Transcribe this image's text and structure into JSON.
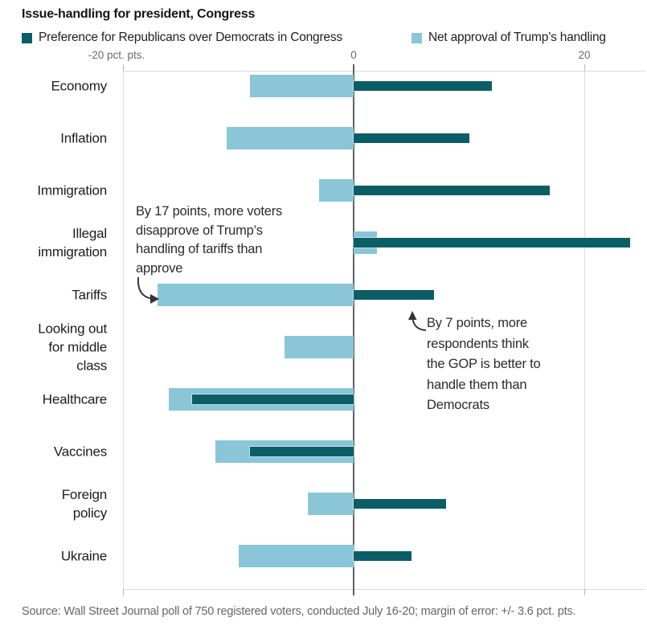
{
  "title": "Issue-handling for president, Congress",
  "legend": [
    {
      "label": "Preference for Republicans over Democrats in Congress",
      "color": "#0b5e66"
    },
    {
      "label": "Net approval of Trump’s handling",
      "color": "#8ac6d8"
    }
  ],
  "axis": {
    "unit_label": "pct. pts.",
    "ticks": [
      {
        "value": -20,
        "label": "-20 pct. pts."
      },
      {
        "value": 0,
        "label": "0"
      },
      {
        "value": 20,
        "label": "20"
      }
    ]
  },
  "chart_data": {
    "type": "bar",
    "orientation": "horizontal",
    "title": "Issue-handling for president, Congress",
    "xlabel": "pct. pts.",
    "xlim": [
      -20,
      25.5
    ],
    "grid": "x",
    "legend_position": "top",
    "categories": [
      "Economy",
      "Inflation",
      "Immigration",
      "Illegal immigration",
      "Tariffs",
      "Looking out for middle class",
      "Healthcare",
      "Vaccines",
      "Foreign policy",
      "Ukraine"
    ],
    "category_labels": [
      "Economy",
      "Inflation",
      "Immigration",
      "Illegal\nimmigration",
      "Tariffs",
      "Looking out\nfor middle\nclass",
      "Healthcare",
      "Vaccines",
      "Foreign\npolicy",
      "Ukraine"
    ],
    "series": [
      {
        "name": "Preference for Republicans over Democrats in Congress",
        "color": "#0b5e66",
        "values": [
          12,
          10,
          17,
          24,
          7,
          null,
          -14,
          -9,
          8,
          5
        ]
      },
      {
        "name": "Net approval of Trump’s handling",
        "color": "#8ac6d8",
        "values": [
          -9,
          -11,
          -3,
          2,
          -17,
          -6,
          -16,
          -12,
          -4,
          -10
        ]
      }
    ]
  },
  "annotations": [
    {
      "text": "By 17 points, more voters\ndisapprove of Trump’s\nhandling of tariffs than\napprove"
    },
    {
      "text": "By 7 points, more\nrespondents think\nthe GOP is better to\nhandle them than\nDemocrats"
    }
  ],
  "source": "Source: Wall Street Journal poll of 750 registered voters, conducted July 16-20; margin of error: +/- 3.6 pct. pts."
}
